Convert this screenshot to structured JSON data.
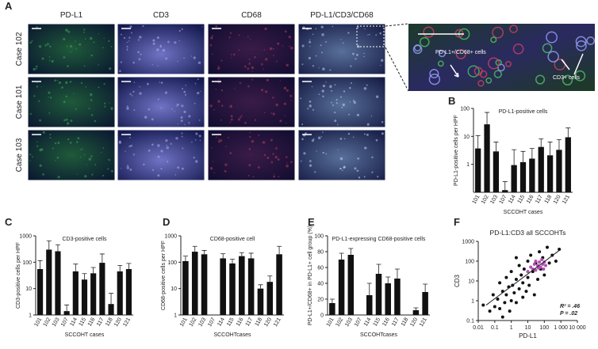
{
  "panels": {
    "letters": [
      "A",
      "B",
      "C",
      "D",
      "E",
      "F"
    ],
    "column_headers": [
      "PD-L1",
      "CD3",
      "CD68",
      "PD-L1/CD3/CD68"
    ],
    "row_labels": [
      "Case 102",
      "Case 101",
      "Case 103"
    ],
    "zoom_labels": [
      "PD-L1+/CD68+ cells",
      "CD3+ cells"
    ]
  },
  "chart_data": [
    {
      "type": "bar",
      "title": "PD-L1-positive cells",
      "ylabel": "PD-L1-positive cells per HPF",
      "xlabel": "SCCOHT cases",
      "categories": [
        "101",
        "102",
        "103",
        "107",
        "114",
        "115",
        "116",
        "117",
        "118",
        "120",
        "121"
      ],
      "values": [
        3.7,
        27,
        2.9,
        0.12,
        0.94,
        1.2,
        1.6,
        4.2,
        2.1,
        3.3,
        9.3
      ],
      "errors": [
        7,
        45,
        3.4,
        0.12,
        2.4,
        1.7,
        2.1,
        4,
        4.2,
        4.4,
        10.7
      ],
      "color": "#111111",
      "log_y": true,
      "ylim": [
        0.1,
        100
      ],
      "yticks": [
        1,
        10,
        100
      ]
    },
    {
      "type": "bar",
      "title": "CD3-positive cells",
      "ylabel": "CD3-positive cells per HPF",
      "xlabel": "SCCOHT cases",
      "categories": [
        "101",
        "102",
        "103",
        "107",
        "114",
        "115",
        "116",
        "117",
        "118",
        "120",
        "121"
      ],
      "values": [
        55,
        300,
        260,
        1.4,
        45,
        22,
        38,
        95,
        2.6,
        45,
        55
      ],
      "errors": [
        60,
        350,
        200,
        1,
        40,
        15,
        25,
        110,
        4,
        30,
        35
      ],
      "color": "#111111",
      "log_y": true,
      "ylim": [
        1,
        1000
      ],
      "yticks": [
        1,
        10,
        100,
        1000
      ]
    },
    {
      "type": "bar",
      "title": "CD68-positive cell",
      "ylabel": "CD68-positive cells per HPF",
      "xlabel": "SCCOHTcases",
      "categories": [
        "101",
        "102",
        "103",
        "107",
        "114",
        "115",
        "116",
        "117",
        "118",
        "120",
        "121"
      ],
      "values": [
        110,
        250,
        200,
        null,
        140,
        90,
        170,
        140,
        10,
        18,
        200
      ],
      "errors": [
        60,
        150,
        80,
        null,
        70,
        40,
        60,
        80,
        4,
        12,
        200
      ],
      "color": "#111111",
      "log_y": true,
      "ylim": [
        1,
        1000
      ],
      "yticks": [
        1,
        10,
        100,
        1000
      ]
    },
    {
      "type": "bar",
      "title": "PD-L1-expressing CD68-positive cells",
      "ylabel": "PD-L1+/CD68+ in PD-L1+ cell group (%)",
      "xlabel": "SCCOHTcases",
      "categories": [
        "101",
        "102",
        "103",
        "107",
        "114",
        "115",
        "116",
        "117",
        "118",
        "120",
        "121"
      ],
      "values": [
        15,
        70,
        76,
        null,
        25,
        52,
        40,
        46,
        null,
        6,
        29
      ],
      "errors": [
        5,
        8,
        8,
        null,
        15,
        12,
        8,
        12,
        null,
        3,
        10
      ],
      "color": "#111111",
      "log_y": false,
      "ylim": [
        0,
        100
      ],
      "yticks": [
        0,
        20,
        40,
        60,
        80,
        100
      ]
    },
    {
      "type": "scatter",
      "title": "PD-L1:CD3 all SCCOHTs",
      "xlabel": "PD-L1",
      "ylabel": "CD3",
      "log_x": true,
      "log_y": true,
      "xlim": [
        0.01,
        10000
      ],
      "ylim": [
        0.1,
        1000
      ],
      "xticks": [
        0.01,
        0.1,
        1,
        10,
        100,
        {
          "value": 1000,
          "label": "1 000"
        },
        {
          "value": 10000,
          "label": "10 000"
        }
      ],
      "yticks": [
        0.1,
        1,
        10,
        100,
        1000
      ],
      "series": [
        {
          "color": "#111111",
          "x": [
            0.02,
            0.05,
            0.08,
            0.1,
            0.15,
            0.2,
            0.2,
            0.3,
            0.4,
            0.5,
            0.5,
            0.7,
            0.8,
            1,
            1,
            1.2,
            1.5,
            2,
            2,
            3,
            3,
            4,
            5,
            5,
            6,
            8,
            10,
            10,
            12,
            15,
            20,
            25,
            30,
            40,
            50,
            60,
            80,
            100,
            150,
            200,
            300,
            500,
            800,
            0.3,
            2
          ],
          "y": [
            0.6,
            0.3,
            2,
            0.5,
            1.2,
            8,
            0.4,
            3,
            0.8,
            15,
            2,
            5,
            0.3,
            1,
            30,
            6,
            2.5,
            12,
            0.8,
            4,
            60,
            20,
            1.5,
            8,
            40,
            3,
            100,
            15,
            6,
            200,
            30,
            2,
            80,
            12,
            300,
            40,
            150,
            20,
            500,
            80,
            200,
            100,
            400,
            0.15,
            150
          ]
        },
        {
          "color": "#b04fb0",
          "x": [
            10,
            15,
            20,
            25,
            30,
            40,
            50,
            60,
            70,
            80,
            100,
            120,
            30,
            45,
            90
          ],
          "y": [
            30,
            50,
            40,
            70,
            35,
            60,
            90,
            50,
            120,
            70,
            90,
            60,
            100,
            45,
            40
          ]
        }
      ],
      "trendline": {
        "x": [
          0.03,
          1000
        ],
        "y": [
          0.6,
          400
        ]
      },
      "annotations": [
        "R² = .46",
        "P = .02"
      ]
    }
  ]
}
